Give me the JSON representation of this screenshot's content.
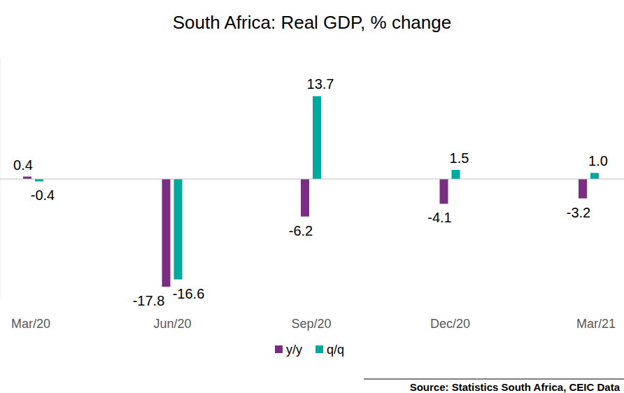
{
  "chart_data": {
    "type": "bar",
    "title": "South Africa: Real GDP, % change",
    "source": "Source: Statistics South Africa, CEIC Data",
    "categories": [
      "Mar/20",
      "Jun/20",
      "Sep/20",
      "Dec/20",
      "Mar/21"
    ],
    "series": [
      {
        "name": "y/y",
        "color": "#7b2c83",
        "values": [
          0.4,
          -17.8,
          -6.2,
          -4.1,
          -3.2
        ]
      },
      {
        "name": "q/q",
        "color": "#00a99d",
        "values": [
          -0.4,
          -16.6,
          13.7,
          1.5,
          1.0
        ],
        "value_labels": [
          "-0.4",
          "-16.6",
          "13.7",
          "1.5",
          "1.0"
        ]
      }
    ],
    "ylim": [
      -20,
      20
    ],
    "grid": false,
    "data_labels": true,
    "tick_labels": "x",
    "legend": "bottom"
  }
}
